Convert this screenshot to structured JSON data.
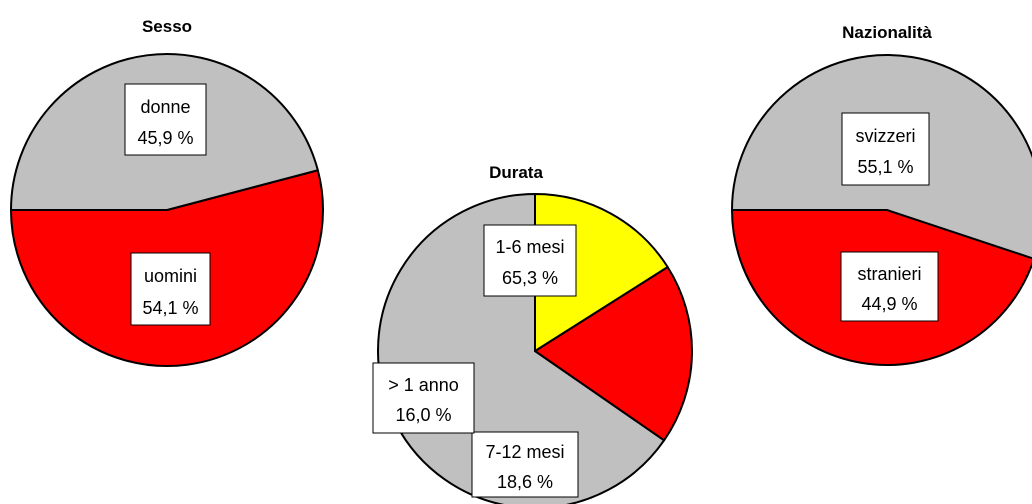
{
  "chart_data": [
    {
      "type": "pie",
      "title": "Sesso",
      "start_angle_deg": 180,
      "slices": [
        {
          "label": "uomini",
          "value": 54.1,
          "value_text": "54,1 %",
          "color": "#ff0000"
        },
        {
          "label": "donne",
          "value": 45.9,
          "value_text": "45,9 %",
          "color": "#c0c0c0"
        }
      ]
    },
    {
      "type": "pie",
      "title": "Durata",
      "start_angle_deg": 270,
      "slices": [
        {
          "label": "1-6 mesi",
          "value": 65.3,
          "value_text": "65,3 %",
          "color": "#c0c0c0"
        },
        {
          "label": "7-12 mesi",
          "value": 18.6,
          "value_text": "18,6 %",
          "color": "#ff0000"
        },
        {
          "label": "> 1 anno",
          "value": 16.0,
          "value_text": "16,0 %",
          "color": "#ffff00"
        }
      ]
    },
    {
      "type": "pie",
      "title": "Nazionalità",
      "start_angle_deg": 180,
      "slices": [
        {
          "label": "stranieri",
          "value": 44.9,
          "value_text": "44,9 %",
          "color": "#ff0000"
        },
        {
          "label": "svizzeri",
          "value": 55.1,
          "value_text": "55,1 %",
          "color": "#c0c0c0"
        }
      ]
    }
  ]
}
